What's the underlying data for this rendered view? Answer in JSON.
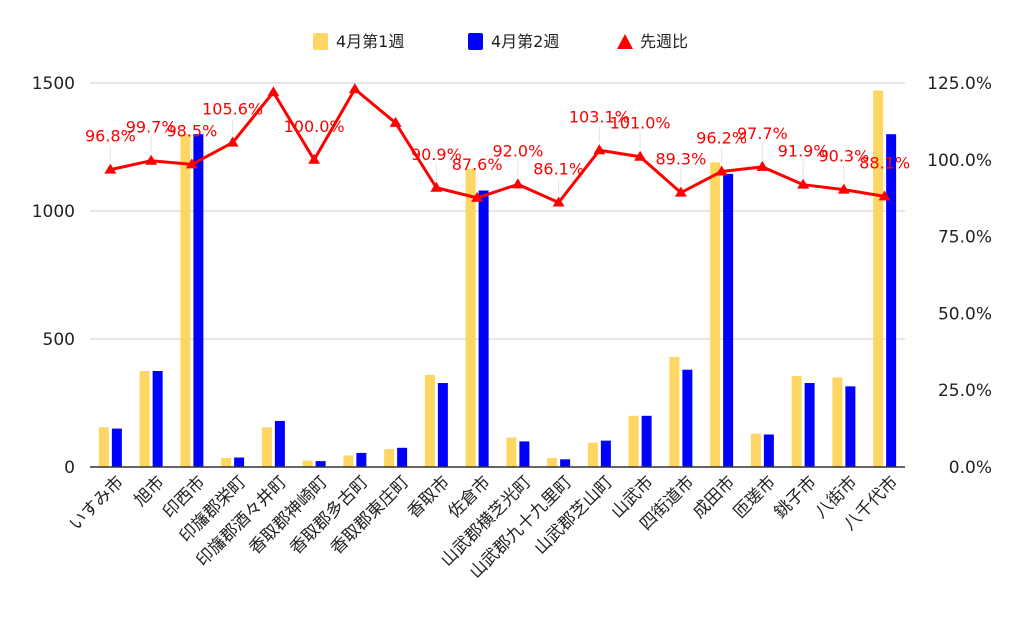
{
  "chart_data": {
    "type": "bar",
    "categories": [
      "いすみ市",
      "旭市",
      "印西市",
      "印旛郡栄町",
      "印旛郡酒々井町",
      "香取郡神崎町",
      "香取郡多古町",
      "香取郡東庄町",
      "香取市",
      "佐倉市",
      "山武郡横芝光町",
      "山武郡九十九里町",
      "山武郡芝山町",
      "山武市",
      "四街道市",
      "成田市",
      "匝瑳市",
      "銚子市",
      "八街市",
      "八千代市"
    ],
    "series": [
      {
        "name": "4月第1週",
        "type": "bar",
        "axis": "left",
        "color": "#fdd663",
        "values": [
          155,
          375,
          1300,
          35,
          155,
          25,
          45,
          70,
          360,
          1165,
          115,
          35,
          95,
          200,
          430,
          1190,
          130,
          355,
          350,
          1470
        ]
      },
      {
        "name": "4月第2週",
        "type": "bar",
        "axis": "left",
        "color": "#0000ff",
        "values": [
          150,
          375,
          1300,
          37,
          180,
          23,
          55,
          75,
          328,
          1080,
          100,
          30,
          103,
          200,
          380,
          1145,
          127,
          328,
          315,
          1300
        ]
      },
      {
        "name": "先週比",
        "type": "line",
        "axis": "right",
        "color": "#ff0000",
        "values": [
          96.8,
          99.7,
          98.5,
          105.6,
          122,
          100.0,
          123,
          112,
          90.9,
          87.6,
          92.0,
          86.1,
          103.1,
          101.0,
          89.3,
          96.2,
          97.7,
          91.9,
          90.3,
          88.1
        ],
        "labels": [
          "96.8%",
          "99.7%",
          "98.5%",
          "105.6%",
          "",
          "100.0%",
          "",
          "",
          "90.9%",
          "87.6%",
          "92.0%",
          "86.1%",
          "103.1%",
          "101.0%",
          "89.3%",
          "96.2%",
          "97.7%",
          "91.9%",
          "90.3%",
          "88.1%"
        ]
      }
    ],
    "y_left": {
      "min": 0,
      "max": 1500,
      "ticks": [
        "0",
        "500",
        "1000",
        "1500"
      ],
      "tick_values": [
        0,
        500,
        1000,
        1500
      ]
    },
    "y_right": {
      "min": 0,
      "max": 125,
      "ticks": [
        "0.0%",
        "25.0%",
        "50.0%",
        "75.0%",
        "100.0%",
        "125.0%"
      ],
      "tick_values": [
        0,
        25,
        50,
        75,
        100,
        125
      ]
    },
    "legend_position": "top-center",
    "grid": true,
    "gridline_color": "#cccccc",
    "axis_color": "#333333"
  }
}
